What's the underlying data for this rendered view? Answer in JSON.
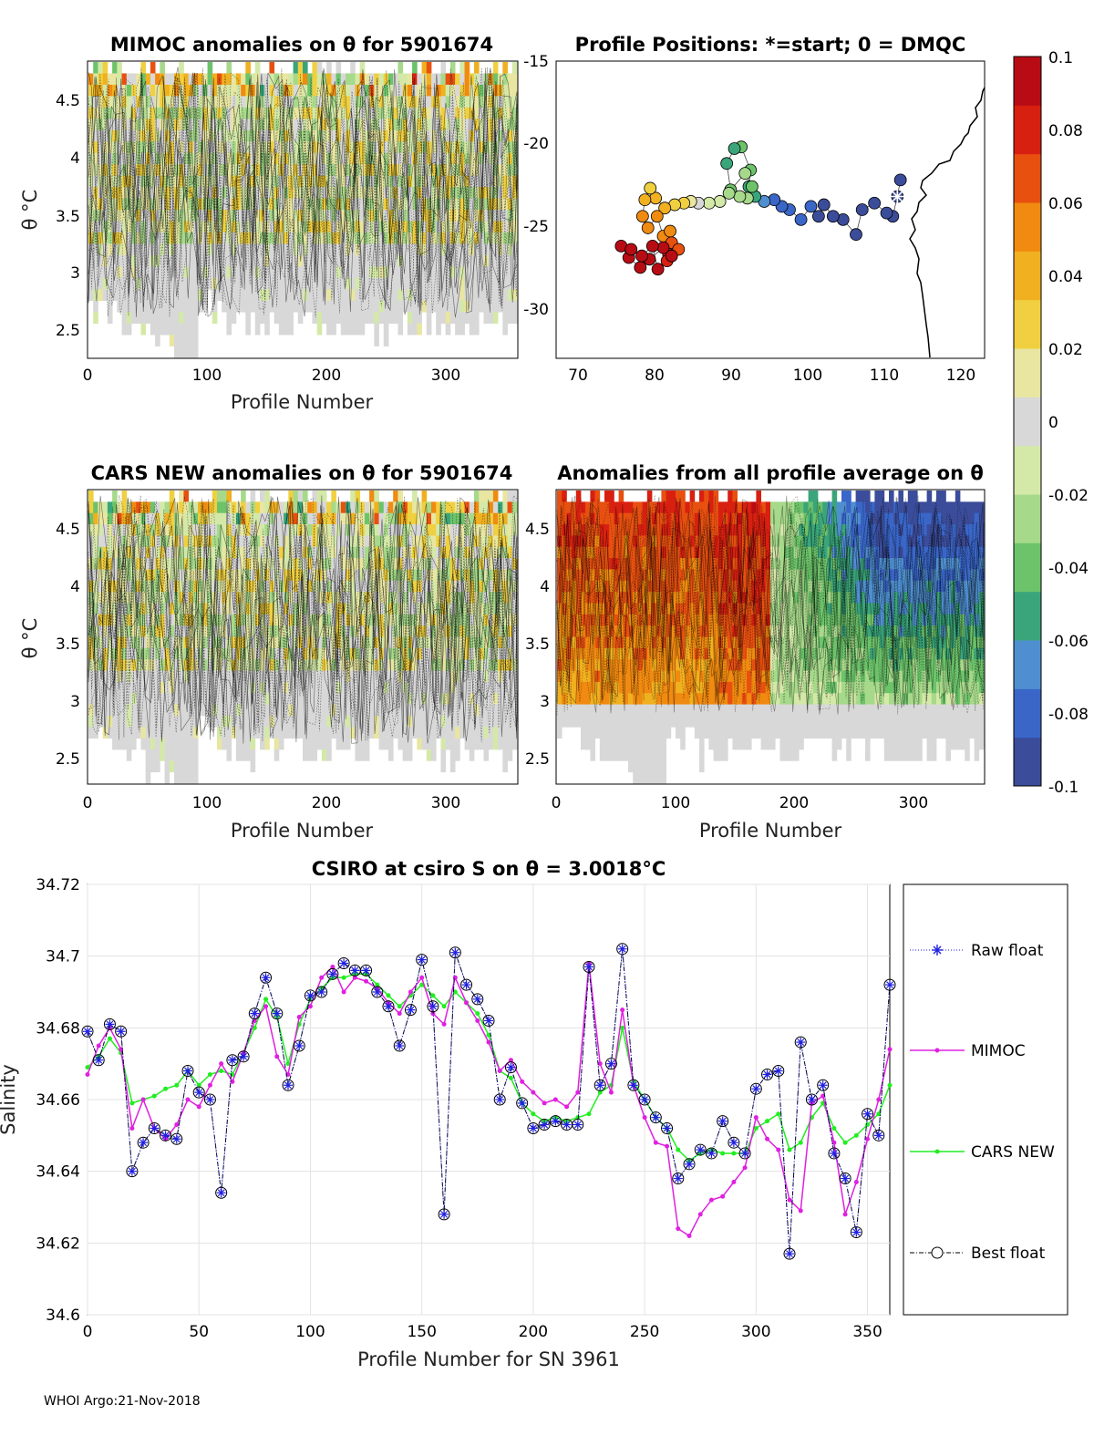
{
  "footer": "WHOI Argo:21-Nov-2018",
  "colors": {
    "raw_float": "#2020e0",
    "mimoc": "#e020e0",
    "cars_new": "#20ee20",
    "best_float": "#000000",
    "colormap": [
      "#3b4c9a",
      "#3a66c8",
      "#4f8fd0",
      "#3aa57a",
      "#6cc36a",
      "#a6d98a",
      "#d4e9a8",
      "#d8d8d8",
      "#e8e6a0",
      "#f0d040",
      "#f0b020",
      "#f08a10",
      "#e85010",
      "#d82010",
      "#b80c14"
    ]
  },
  "panel_mimoc": {
    "title": "MIMOC anomalies on θ  for 5901674",
    "xlabel": "Profile Number",
    "ylabel": "θ °C",
    "xticks": [
      "0",
      "100",
      "200",
      "300"
    ],
    "yticks": [
      "2.5",
      "3",
      "3.5",
      "4",
      "4.5"
    ]
  },
  "panel_positions": {
    "title": "Profile Positions: *=start; 0 = DMQC",
    "xticks": [
      "70",
      "80",
      "90",
      "100",
      "110",
      "120"
    ],
    "yticks": [
      "-15",
      "-20",
      "-25",
      "-30"
    ]
  },
  "panel_cars": {
    "title": "CARS NEW anomalies on θ for 5901674",
    "xlabel": "Profile Number",
    "ylabel": "θ °C",
    "xticks": [
      "0",
      "100",
      "200",
      "300"
    ],
    "yticks": [
      "2.5",
      "3",
      "3.5",
      "4",
      "4.5"
    ]
  },
  "panel_average": {
    "title": "Anomalies from all profile average on θ",
    "xlabel": "Profile Number",
    "xticks": [
      "0",
      "100",
      "200",
      "300"
    ],
    "yticks": [
      "2.5",
      "3",
      "3.5",
      "4",
      "4.5"
    ]
  },
  "colorbar": {
    "ticks": [
      "0.1",
      "0.08",
      "0.06",
      "0.04",
      "0.02",
      "0",
      "-0.02",
      "-0.04",
      "-0.06",
      "-0.08",
      "-0.1"
    ]
  },
  "chart_data": {
    "type": "line",
    "title": "CSIRO at csiro S on θ = 3.0018°C",
    "xlabel": "Profile Number for SN 3961",
    "ylabel": "Salinity",
    "xlim": [
      0,
      360
    ],
    "ylim": [
      34.6,
      34.72
    ],
    "xticks": [
      "0",
      "50",
      "100",
      "150",
      "200",
      "250",
      "300",
      "350"
    ],
    "yticks": [
      "34.6",
      "34.62",
      "34.64",
      "34.66",
      "34.68",
      "34.7",
      "34.72"
    ],
    "legend_position": "right",
    "x": [
      0,
      5,
      10,
      15,
      20,
      25,
      30,
      35,
      40,
      45,
      50,
      55,
      60,
      65,
      70,
      75,
      80,
      85,
      90,
      95,
      100,
      105,
      110,
      115,
      120,
      125,
      130,
      135,
      140,
      145,
      150,
      155,
      160,
      165,
      170,
      175,
      180,
      185,
      190,
      195,
      200,
      205,
      210,
      215,
      220,
      225,
      230,
      235,
      240,
      245,
      250,
      255,
      260,
      265,
      270,
      275,
      280,
      285,
      290,
      295,
      300,
      305,
      310,
      315,
      320,
      325,
      330,
      335,
      340,
      345,
      350,
      355,
      360
    ],
    "series": [
      {
        "name": "Raw float",
        "values": [
          34.679,
          34.671,
          34.681,
          34.679,
          34.64,
          34.648,
          34.652,
          34.65,
          34.649,
          34.668,
          34.662,
          34.66,
          34.634,
          34.671,
          34.672,
          34.684,
          34.694,
          34.684,
          34.664,
          34.675,
          34.689,
          34.69,
          34.695,
          34.698,
          34.696,
          34.696,
          34.69,
          34.686,
          34.675,
          34.685,
          34.699,
          34.686,
          34.628,
          34.701,
          34.692,
          34.688,
          34.682,
          34.66,
          34.669,
          34.659,
          34.652,
          34.653,
          34.654,
          34.653,
          34.653,
          34.697,
          34.664,
          34.67,
          34.702,
          34.664,
          34.66,
          34.655,
          34.652,
          34.638,
          34.642,
          34.646,
          34.645,
          34.654,
          34.648,
          34.645,
          34.663,
          34.667,
          34.668,
          34.617,
          34.676,
          34.66,
          34.664,
          34.645,
          34.638,
          34.623,
          34.656,
          34.65,
          34.692
        ]
      },
      {
        "name": "MIMOC",
        "values": [
          34.667,
          34.675,
          34.68,
          34.674,
          34.652,
          34.66,
          34.652,
          34.649,
          34.653,
          34.66,
          34.658,
          34.664,
          34.67,
          34.665,
          34.673,
          34.682,
          34.686,
          34.672,
          34.667,
          34.683,
          34.686,
          34.694,
          34.697,
          34.69,
          34.694,
          34.693,
          34.691,
          34.687,
          34.684,
          34.69,
          34.694,
          34.684,
          34.681,
          34.694,
          34.687,
          34.682,
          34.676,
          34.668,
          34.671,
          34.665,
          34.662,
          34.659,
          34.66,
          34.658,
          34.662,
          34.698,
          34.67,
          34.662,
          34.685,
          34.664,
          34.655,
          34.648,
          34.647,
          34.624,
          34.622,
          34.628,
          34.632,
          34.633,
          34.637,
          34.641,
          34.655,
          34.649,
          34.646,
          34.632,
          34.629,
          34.659,
          34.661,
          34.648,
          34.628,
          34.637,
          34.649,
          34.66,
          34.674
        ]
      },
      {
        "name": "CARS NEW",
        "values": [
          34.669,
          34.672,
          34.677,
          34.673,
          34.659,
          34.66,
          34.661,
          34.663,
          34.664,
          34.668,
          34.664,
          34.667,
          34.668,
          34.667,
          34.673,
          34.68,
          34.688,
          34.683,
          34.67,
          34.681,
          34.688,
          34.691,
          34.694,
          34.694,
          34.695,
          34.695,
          34.692,
          34.689,
          34.686,
          34.689,
          34.692,
          34.689,
          34.686,
          34.69,
          34.687,
          34.684,
          34.678,
          34.668,
          34.666,
          34.659,
          34.656,
          34.654,
          34.655,
          34.654,
          34.655,
          34.656,
          34.662,
          34.664,
          34.68,
          34.665,
          34.66,
          34.655,
          34.652,
          34.646,
          34.643,
          34.645,
          34.646,
          34.645,
          34.645,
          34.645,
          34.652,
          34.654,
          34.656,
          34.646,
          34.648,
          34.655,
          34.659,
          34.652,
          34.648,
          34.65,
          34.653,
          34.656,
          34.664
        ]
      },
      {
        "name": "Best float",
        "values": [
          34.679,
          34.671,
          34.681,
          34.679,
          34.64,
          34.648,
          34.652,
          34.65,
          34.649,
          34.668,
          34.662,
          34.66,
          34.634,
          34.671,
          34.672,
          34.684,
          34.694,
          34.684,
          34.664,
          34.675,
          34.689,
          34.69,
          34.695,
          34.698,
          34.696,
          34.696,
          34.69,
          34.686,
          34.675,
          34.685,
          34.699,
          34.686,
          34.628,
          34.701,
          34.692,
          34.688,
          34.682,
          34.66,
          34.669,
          34.659,
          34.652,
          34.653,
          34.654,
          34.653,
          34.653,
          34.697,
          34.664,
          34.67,
          34.702,
          34.664,
          34.66,
          34.655,
          34.652,
          34.638,
          34.642,
          34.646,
          34.645,
          34.654,
          34.648,
          34.645,
          34.663,
          34.667,
          34.668,
          34.617,
          34.676,
          34.66,
          34.664,
          34.645,
          34.638,
          34.623,
          34.656,
          34.65,
          34.692
        ]
      }
    ],
    "map_track": {
      "xlim": [
        67,
        123
      ],
      "ylim": [
        -33,
        -15
      ],
      "lon": [
        112,
        111.6,
        111,
        110.2,
        108.6,
        107,
        106.2,
        104.5,
        103.2,
        102,
        101.3,
        100.3,
        99,
        97.5,
        96.5,
        95.5,
        94.2,
        93,
        92.2,
        92.4,
        91.2,
        90.3,
        89.3,
        89.8,
        91.7,
        92.6,
        92,
        91,
        89.6,
        88.4,
        87,
        85.6,
        84.6,
        83.7,
        82.5,
        81.2,
        80,
        79.3,
        78.6,
        78.3,
        79,
        80.2,
        81,
        81.9,
        82.1,
        81.7,
        83,
        81,
        79.2,
        78,
        76.5,
        75.5,
        76.8,
        78.2,
        79.6,
        80.3,
        81.5,
        82.1
      ],
      "lat": [
        -22.2,
        -23.2,
        -24.4,
        -24.2,
        -23.6,
        -24,
        -25.5,
        -24.6,
        -24.4,
        -23.7,
        -24.4,
        -23.8,
        -24.6,
        -24,
        -23.8,
        -23.4,
        -23.5,
        -23.2,
        -22.6,
        -21.6,
        -20.2,
        -20.3,
        -21.2,
        -22.8,
        -21.8,
        -22.6,
        -23.3,
        -23.2,
        -23,
        -23.5,
        -23.6,
        -23.6,
        -23.5,
        -23.6,
        -23.7,
        -23.9,
        -23.3,
        -22.7,
        -23.4,
        -24.4,
        -25.1,
        -24.4,
        -25.6,
        -25.3,
        -26,
        -26.7,
        -26.4,
        -26.3,
        -27,
        -27.5,
        -26.9,
        -26.2,
        -26.4,
        -26.8,
        -26.2,
        -27.6,
        -27.1,
        -26.8
      ],
      "value": [
        -0.1,
        -0.1,
        -0.1,
        -0.1,
        -0.09,
        -0.1,
        -0.1,
        -0.09,
        -0.09,
        -0.1,
        -0.09,
        -0.08,
        -0.08,
        -0.08,
        -0.08,
        -0.08,
        -0.07,
        -0.06,
        -0.05,
        -0.04,
        -0.04,
        -0.05,
        -0.06,
        -0.04,
        -0.03,
        -0.04,
        -0.03,
        -0.02,
        -0.02,
        -0.01,
        -0.01,
        0,
        0.01,
        0.02,
        0.03,
        0.04,
        0.04,
        0.03,
        0.04,
        0.05,
        0.05,
        0.06,
        0.06,
        0.05,
        0.07,
        0.08,
        0.07,
        0.09,
        0.1,
        0.1,
        0.09,
        0.1,
        0.1,
        0.09,
        0.1,
        0.09,
        0.08,
        0.09
      ]
    }
  }
}
